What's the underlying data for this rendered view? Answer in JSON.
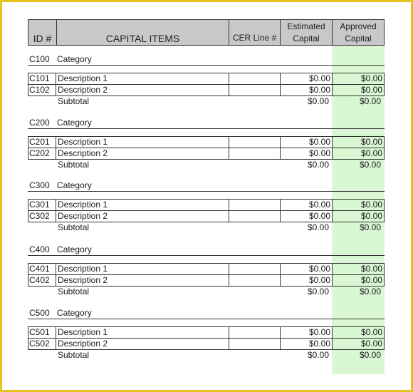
{
  "header": {
    "id": "ID #",
    "items": "CAPITAL ITEMS",
    "cer": "CER Line #",
    "estimated_line1": "Estimated",
    "estimated_line2": "Capital",
    "approved_line1": "Approved",
    "approved_line2": "Capital"
  },
  "sections": [
    {
      "id": "C100",
      "category": "Category",
      "rows": [
        {
          "id": "C101",
          "description": "Description 1",
          "estimated": "$0.00",
          "approved": "$0.00"
        },
        {
          "id": "C102",
          "description": "Description 2",
          "estimated": "$0.00",
          "approved": "$0.00"
        }
      ],
      "subtotal_label": "Subtotal",
      "subtotal_estimated": "$0.00",
      "subtotal_approved": "$0.00"
    },
    {
      "id": "C200",
      "category": "Category",
      "rows": [
        {
          "id": "C201",
          "description": "Description 1",
          "estimated": "$0.00",
          "approved": "$0.00"
        },
        {
          "id": "C202",
          "description": "Description 2",
          "estimated": "$0.00",
          "approved": "$0.00"
        }
      ],
      "subtotal_label": "Subtotal",
      "subtotal_estimated": "$0.00",
      "subtotal_approved": "$0.00"
    },
    {
      "id": "C300",
      "category": "Category",
      "rows": [
        {
          "id": "C301",
          "description": "Description 1",
          "estimated": "$0.00",
          "approved": "$0.00"
        },
        {
          "id": "C302",
          "description": "Description 2",
          "estimated": "$0.00",
          "approved": "$0.00"
        }
      ],
      "subtotal_label": "Subtotal",
      "subtotal_estimated": "$0.00",
      "subtotal_approved": "$0.00"
    },
    {
      "id": "C400",
      "category": "Category",
      "rows": [
        {
          "id": "C401",
          "description": "Description 1",
          "estimated": "$0.00",
          "approved": "$0.00"
        },
        {
          "id": "C402",
          "description": "Description 2",
          "estimated": "$0.00",
          "approved": "$0.00"
        }
      ],
      "subtotal_label": "Subtotal",
      "subtotal_estimated": "$0.00",
      "subtotal_approved": "$0.00"
    },
    {
      "id": "C500",
      "category": "Category",
      "rows": [
        {
          "id": "C501",
          "description": "Description 1",
          "estimated": "$0.00",
          "approved": "$0.00"
        },
        {
          "id": "C502",
          "description": "Description 2",
          "estimated": "$0.00",
          "approved": "$0.00"
        }
      ],
      "subtotal_label": "Subtotal",
      "subtotal_estimated": "$0.00",
      "subtotal_approved": "$0.00"
    }
  ],
  "colors": {
    "frame_border": "#e8c21c",
    "header_fill": "#c8c8c8",
    "approved_fill": "#d9f7d3"
  }
}
